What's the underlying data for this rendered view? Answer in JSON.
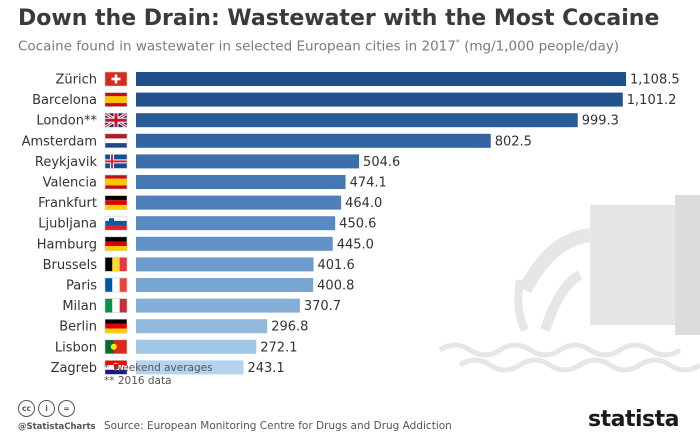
{
  "header": {
    "title": "Down the Drain: Wastewater with the Most Cocaine",
    "subtitle": "Cocaine found in wastewater in selected European cities in 2017",
    "subtitle_marker": "*",
    "subtitle_unit": " (mg/1,000 people/day)"
  },
  "chart_data": {
    "type": "bar",
    "orientation": "horizontal",
    "title": "Down the Drain: Wastewater with the Most Cocaine",
    "categories": [
      "Zürich",
      "Barcelona",
      "London**",
      "Amsterdam",
      "Reykjavik",
      "Valencia",
      "Frankfurt",
      "Ljubljana",
      "Hamburg",
      "Brussels",
      "Paris",
      "Milan",
      "Berlin",
      "Lisbon",
      "Zagreb"
    ],
    "values": [
      1108.5,
      1101.2,
      999.3,
      802.5,
      504.6,
      474.1,
      464.0,
      450.6,
      445.0,
      401.6,
      400.8,
      370.7,
      296.8,
      272.1,
      243.1
    ],
    "value_labels": [
      "1,108.5",
      "1,101.2",
      "999.3",
      "802.5",
      "504.6",
      "474.1",
      "464.0",
      "450.6",
      "445.0",
      "401.6",
      "400.8",
      "370.7",
      "296.8",
      "272.1",
      "243.1"
    ],
    "flags": [
      "switzerland-flag",
      "spain-flag",
      "uk-flag",
      "netherlands-flag",
      "iceland-flag",
      "spain-flag",
      "germany-flag",
      "slovenia-flag",
      "germany-flag",
      "belgium-flag",
      "france-flag",
      "italy-flag",
      "germany-flag",
      "portugal-flag",
      "croatia-flag"
    ],
    "bar_colors": [
      "#1f4e8c",
      "#24528f",
      "#2a5a98",
      "#3263a2",
      "#3b6eac",
      "#4678b4",
      "#4f80ba",
      "#5889c0",
      "#6191c6",
      "#6c9bcc",
      "#78a5d2",
      "#84afd8",
      "#92badf",
      "#a2c6e6",
      "#b4d3ee"
    ],
    "xlim": [
      0,
      1108.5
    ],
    "grid": false,
    "legend": "none"
  },
  "footer": {
    "note1": "*  Weekend averages",
    "note2": "** 2016 data",
    "source": "Source: European Monitoring Centre for Drugs and Drug Addiction",
    "handle": "@StatistaCharts",
    "brand": "statista"
  }
}
